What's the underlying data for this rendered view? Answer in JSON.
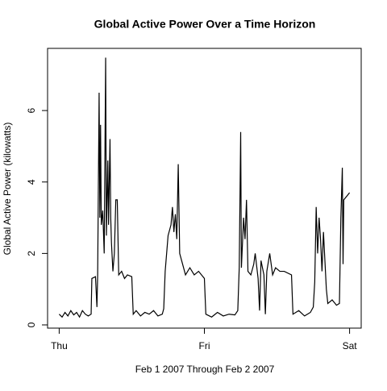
{
  "chart_data": {
    "type": "line",
    "title": "Global Active Power Over a Time Horizon",
    "x_label": "Feb 1 2007 Through Feb 2 2007",
    "y_label": "Global Active Power (kilowatts)",
    "xlim": [
      -0.08,
      2.08
    ],
    "ylim": [
      -0.09,
      7.74
    ],
    "xticks": [
      {
        "value": 0,
        "label": "Thu"
      },
      {
        "value": 1,
        "label": "Fri"
      },
      {
        "value": 2,
        "label": "Sat"
      }
    ],
    "yticks": [
      0,
      2,
      4,
      6
    ],
    "series": [
      {
        "color": "#000000",
        "x": [
          0.0,
          0.02,
          0.04,
          0.06,
          0.08,
          0.1,
          0.12,
          0.14,
          0.16,
          0.18,
          0.2,
          0.22,
          0.225,
          0.25,
          0.26,
          0.265,
          0.275,
          0.28,
          0.285,
          0.29,
          0.3,
          0.31,
          0.32,
          0.325,
          0.335,
          0.34,
          0.35,
          0.355,
          0.36,
          0.37,
          0.38,
          0.39,
          0.4,
          0.41,
          0.43,
          0.45,
          0.47,
          0.5,
          0.51,
          0.53,
          0.56,
          0.59,
          0.62,
          0.65,
          0.68,
          0.71,
          0.72,
          0.73,
          0.75,
          0.77,
          0.78,
          0.79,
          0.8,
          0.81,
          0.82,
          0.83,
          0.85,
          0.87,
          0.9,
          0.93,
          0.96,
          1.0,
          1.01,
          1.05,
          1.09,
          1.13,
          1.17,
          1.21,
          1.23,
          1.24,
          1.25,
          1.255,
          1.27,
          1.28,
          1.29,
          1.3,
          1.32,
          1.34,
          1.35,
          1.37,
          1.38,
          1.39,
          1.41,
          1.42,
          1.43,
          1.45,
          1.47,
          1.49,
          1.52,
          1.55,
          1.6,
          1.61,
          1.65,
          1.69,
          1.73,
          1.75,
          1.76,
          1.77,
          1.78,
          1.79,
          1.8,
          1.81,
          1.82,
          1.83,
          1.84,
          1.85,
          1.88,
          1.91,
          1.93,
          1.94,
          1.95,
          1.955,
          1.96,
          1.98,
          2.0
        ],
        "values": [
          0.3,
          0.22,
          0.35,
          0.25,
          0.4,
          0.28,
          0.35,
          0.22,
          0.4,
          0.3,
          0.25,
          0.3,
          1.3,
          1.35,
          0.5,
          1.4,
          6.5,
          3.0,
          5.6,
          2.8,
          3.2,
          2.0,
          7.48,
          2.5,
          4.6,
          2.8,
          5.2,
          3.0,
          2.3,
          1.5,
          2.0,
          3.5,
          3.5,
          1.4,
          1.5,
          1.3,
          1.4,
          1.35,
          0.3,
          0.4,
          0.25,
          0.35,
          0.3,
          0.4,
          0.25,
          0.3,
          0.45,
          1.5,
          2.5,
          2.8,
          3.3,
          2.6,
          3.1,
          2.4,
          4.5,
          2.0,
          1.7,
          1.4,
          1.6,
          1.4,
          1.5,
          1.3,
          0.3,
          0.22,
          0.35,
          0.25,
          0.3,
          0.28,
          0.4,
          1.6,
          5.4,
          1.6,
          3.0,
          2.4,
          3.5,
          1.5,
          1.4,
          1.7,
          2.0,
          1.3,
          0.4,
          1.8,
          1.4,
          0.3,
          1.5,
          2.0,
          1.4,
          1.6,
          1.5,
          1.5,
          1.4,
          0.3,
          0.4,
          0.25,
          0.35,
          0.5,
          1.2,
          3.3,
          2.0,
          3.0,
          2.4,
          1.5,
          2.6,
          1.8,
          1.0,
          0.6,
          0.7,
          0.55,
          0.6,
          3.0,
          4.4,
          1.7,
          3.5,
          3.6,
          3.7
        ]
      }
    ]
  }
}
